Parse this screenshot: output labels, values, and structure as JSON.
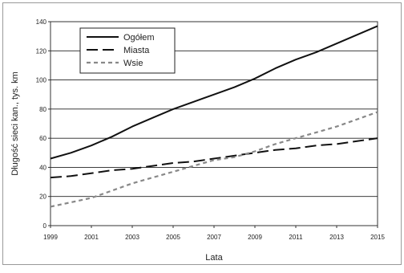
{
  "chart_data": {
    "type": "line",
    "title": "",
    "xlabel": "Lata",
    "ylabel": "Długość sieci kan., tys. km",
    "x": [
      1999,
      2000,
      2001,
      2002,
      2003,
      2004,
      2005,
      2006,
      2007,
      2008,
      2009,
      2010,
      2011,
      2012,
      2013,
      2014,
      2015
    ],
    "xticks": [
      "1999",
      "2001",
      "2003",
      "2005",
      "2007",
      "2009",
      "2011",
      "2013",
      "2015"
    ],
    "xlim": [
      1999,
      2015
    ],
    "yticks": [
      "0",
      "20",
      "40",
      "60",
      "80",
      "100",
      "120",
      "140"
    ],
    "ylim": [
      0,
      140
    ],
    "grid": "horizontal",
    "legend_position": "top-left",
    "series": [
      {
        "name": "Ogółem",
        "style": "solid",
        "color": "#111111",
        "values": [
          46,
          50,
          55,
          61,
          68,
          74,
          80,
          85,
          90,
          95,
          101,
          108,
          114,
          119,
          125,
          131,
          137
        ]
      },
      {
        "name": "Miasta",
        "style": "long-dash",
        "color": "#111111",
        "values": [
          33,
          34,
          36,
          38,
          39,
          41,
          43,
          44,
          46,
          48,
          50,
          52,
          53,
          55,
          56,
          58,
          60
        ]
      },
      {
        "name": "Wsie",
        "style": "short-dash",
        "color": "#888888",
        "values": [
          13,
          16,
          19,
          24,
          29,
          33,
          37,
          41,
          45,
          47,
          51,
          56,
          60,
          64,
          68,
          73,
          78
        ]
      }
    ]
  }
}
